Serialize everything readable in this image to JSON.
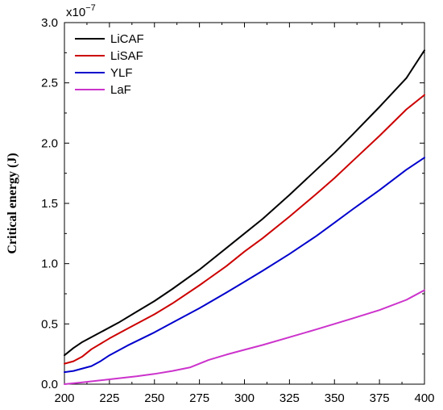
{
  "chart_data": {
    "type": "line",
    "ylabel": "Critical energy (J)",
    "xlabel": "",
    "y_multiplier_base": "x10",
    "y_multiplier_exp": "−7",
    "xlim": [
      200,
      400
    ],
    "ylim": [
      0,
      3.0
    ],
    "x_ticks": [
      200,
      225,
      250,
      275,
      300,
      325,
      350,
      375,
      400
    ],
    "y_ticks": [
      "0.0",
      "0.5",
      "1.0",
      "1.5",
      "2.0",
      "2.5",
      "3.0"
    ],
    "legend_position": "top-left",
    "series": [
      {
        "name": "LiCAF",
        "color": "#000000",
        "x": [
          200,
          205,
          210,
          220,
          230,
          240,
          250,
          260,
          275,
          290,
          300,
          310,
          325,
          340,
          350,
          360,
          375,
          390,
          400
        ],
        "y": [
          0.24,
          0.3,
          0.35,
          0.43,
          0.51,
          0.6,
          0.69,
          0.79,
          0.95,
          1.13,
          1.25,
          1.37,
          1.57,
          1.78,
          1.92,
          2.07,
          2.3,
          2.54,
          2.77
        ]
      },
      {
        "name": "LiSAF",
        "color": "#cc0000",
        "x": [
          200,
          205,
          210,
          215,
          225,
          235,
          250,
          260,
          275,
          290,
          300,
          310,
          325,
          340,
          350,
          360,
          375,
          390,
          400
        ],
        "y": [
          0.17,
          0.19,
          0.23,
          0.29,
          0.38,
          0.46,
          0.58,
          0.67,
          0.82,
          0.98,
          1.1,
          1.21,
          1.39,
          1.58,
          1.71,
          1.85,
          2.06,
          2.28,
          2.4
        ]
      },
      {
        "name": "YLF",
        "color": "#0000cc",
        "x": [
          200,
          205,
          210,
          215,
          220,
          225,
          235,
          250,
          260,
          275,
          290,
          300,
          310,
          325,
          340,
          350,
          360,
          375,
          390,
          400
        ],
        "y": [
          0.1,
          0.11,
          0.13,
          0.15,
          0.19,
          0.24,
          0.32,
          0.43,
          0.51,
          0.63,
          0.76,
          0.85,
          0.94,
          1.08,
          1.23,
          1.34,
          1.45,
          1.61,
          1.78,
          1.88
        ]
      },
      {
        "name": "LaF",
        "color": "#cc33cc",
        "x": [
          200,
          210,
          225,
          240,
          250,
          260,
          270,
          275,
          280,
          290,
          300,
          310,
          325,
          340,
          350,
          360,
          375,
          390,
          400
        ],
        "y": [
          0.0,
          0.015,
          0.04,
          0.065,
          0.085,
          0.11,
          0.14,
          0.17,
          0.2,
          0.245,
          0.285,
          0.325,
          0.39,
          0.455,
          0.5,
          0.545,
          0.615,
          0.7,
          0.78
        ]
      }
    ]
  }
}
